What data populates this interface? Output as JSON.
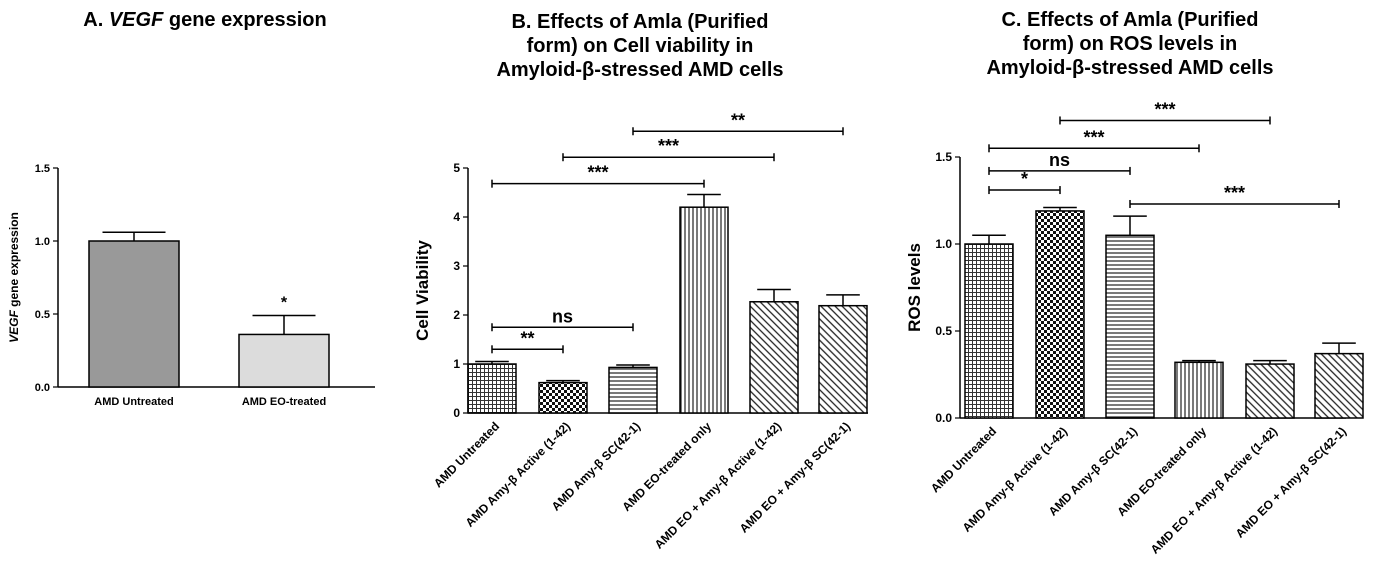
{
  "chart_data": [
    {
      "type": "bar",
      "panel": "A",
      "title_prefix": "A. ",
      "title_italic": "VEGF",
      "title_suffix": " gene expression",
      "ylabel_italic": "VEGF",
      "ylabel_suffix": " gene expression",
      "categories": [
        "AMD Untreated",
        "AMD EO-treated"
      ],
      "values": [
        1.0,
        0.36
      ],
      "errors": [
        0.06,
        0.13
      ],
      "ylim": [
        0,
        1.5
      ],
      "yticks": [
        "0.0",
        "0.5",
        "1.0",
        "1.5"
      ],
      "fills": [
        "#999999",
        "#dcdcdc"
      ],
      "annotations": [
        {
          "bar": 1,
          "text": "*"
        }
      ],
      "grid": false,
      "legend": "none"
    },
    {
      "type": "bar",
      "panel": "B",
      "title": "B. Effects of Amla (Purified form) on Cell viability in Amyloid-β-stressed AMD cells",
      "title_lines": [
        "B. Effects of Amla (Purified",
        "form) on Cell viability in",
        "Amyloid-β-stressed AMD cells"
      ],
      "ylabel": "Cell Viability",
      "categories": [
        "AMD Untreated",
        "AMD Amy-β Active (1-42)",
        "AMD Amy-β SC(42-1)",
        "AMD EO-treated only",
        "AMD EO + Amy-β Active (1-42)",
        "AMD EO + Amy-β SC(42-1)"
      ],
      "values": [
        1.0,
        0.62,
        0.93,
        4.2,
        2.27,
        2.19
      ],
      "errors": [
        0.05,
        0.04,
        0.05,
        0.26,
        0.25,
        0.22
      ],
      "ylim": [
        0,
        5
      ],
      "yticks": [
        "0",
        "1",
        "2",
        "3",
        "4",
        "5"
      ],
      "patterns": [
        "grid",
        "check",
        "hlines",
        "vlines",
        "diag",
        "diag"
      ],
      "significance": [
        {
          "from": 0,
          "to": 1,
          "value": 1.3,
          "label": "**"
        },
        {
          "from": 0,
          "to": 2,
          "value": 1.75,
          "label": "ns"
        },
        {
          "from": 0,
          "to": 3,
          "value": 4.68,
          "label": "***"
        },
        {
          "from": 1,
          "to": 4,
          "value": 5.22,
          "label": "***"
        },
        {
          "from": 2,
          "to": 5,
          "value": 5.75,
          "label": "**"
        }
      ],
      "grid": false,
      "legend": "none"
    },
    {
      "type": "bar",
      "panel": "C",
      "title": "C. Effects of Amla (Purified form) on ROS levels in Amyloid-β-stressed AMD cells",
      "title_lines": [
        "C. Effects of Amla (Purified",
        "form) on ROS levels in",
        "Amyloid-β-stressed AMD cells"
      ],
      "ylabel": "ROS levels",
      "categories": [
        "AMD Untreated",
        "AMD Amy-β Active (1-42)",
        "AMD Amy-β SC(42-1)",
        "AMD EO-treated only",
        "AMD EO + Amy-β Active (1-42)",
        "AMD EO + Amy-β SC(42-1)"
      ],
      "values": [
        1.0,
        1.19,
        1.05,
        0.32,
        0.31,
        0.37
      ],
      "errors": [
        0.05,
        0.02,
        0.11,
        0.01,
        0.02,
        0.06
      ],
      "ylim": [
        0,
        1.5
      ],
      "yticks": [
        "0.0",
        "0.5",
        "1.0",
        "1.5"
      ],
      "patterns": [
        "grid",
        "check",
        "hlines",
        "vlines",
        "diag",
        "diag"
      ],
      "significance": [
        {
          "from": 0,
          "to": 1,
          "value": 1.31,
          "label": "*"
        },
        {
          "from": 0,
          "to": 2,
          "value": 1.42,
          "label": "ns"
        },
        {
          "from": 2,
          "to": 5,
          "value": 1.23,
          "label": "***"
        },
        {
          "from": 0,
          "to": 3,
          "value": 1.55,
          "label": "***"
        },
        {
          "from": 1,
          "to": 4,
          "value": 1.71,
          "label": "***"
        }
      ],
      "grid": false,
      "legend": "none"
    }
  ]
}
